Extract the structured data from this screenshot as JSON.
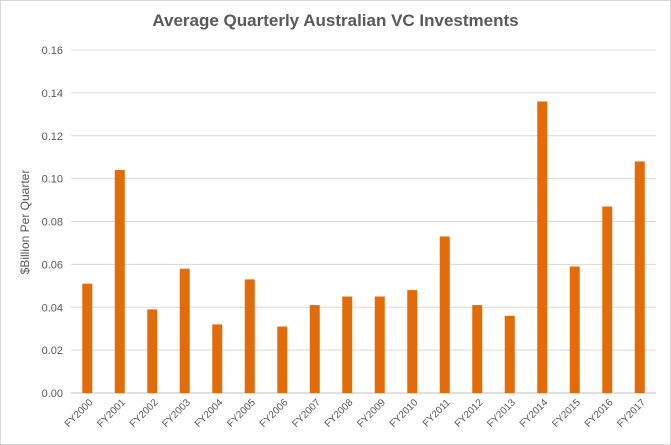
{
  "chart_data": {
    "type": "bar",
    "title": "Average Quarterly Australian VC Investments",
    "xlabel": "",
    "ylabel": "$Billion Per Quarter",
    "ylim": [
      0,
      0.16
    ],
    "ytick_step": 0.02,
    "ytick_labels": [
      "0.00",
      "0.02",
      "0.04",
      "0.06",
      "0.08",
      "0.10",
      "0.12",
      "0.14",
      "0.16"
    ],
    "grid": true,
    "legend": "none",
    "bar_color": "#e36c0a",
    "categories": [
      "FY2000",
      "FY2001",
      "FY2002",
      "FY2003",
      "FY2004",
      "FY2005",
      "FY2006",
      "FY2007",
      "FY2008",
      "FY2009",
      "FY2010",
      "FY2011",
      "FY2012",
      "FY2013",
      "FY2014",
      "FY2015",
      "FY2016",
      "FY2017"
    ],
    "values": [
      0.051,
      0.104,
      0.039,
      0.058,
      0.032,
      0.053,
      0.031,
      0.041,
      0.045,
      0.045,
      0.048,
      0.073,
      0.041,
      0.036,
      0.136,
      0.059,
      0.087,
      0.108
    ]
  }
}
